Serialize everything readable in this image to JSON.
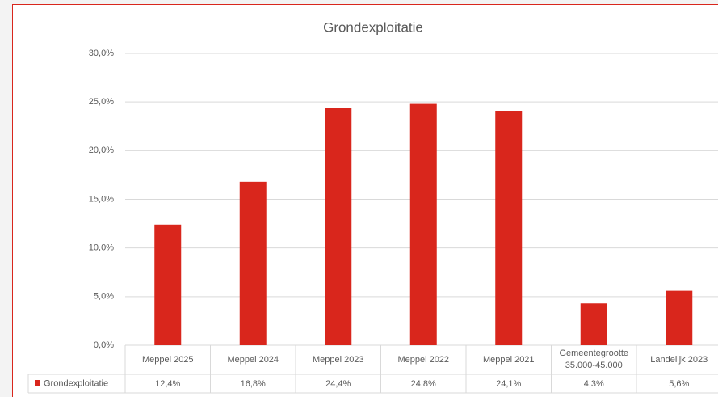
{
  "chart_data": {
    "type": "bar",
    "title": "Grondexploitatie",
    "categories": [
      "Meppel 2025",
      "Meppel 2024",
      "Meppel 2023",
      "Meppel 2022",
      "Meppel 2021",
      "Gemeentegrootte 35.000-45.000",
      "Landelijk 2023"
    ],
    "series": [
      {
        "name": "Grondexploitatie",
        "color": "#d9261c",
        "values": [
          12.4,
          16.8,
          24.4,
          24.8,
          24.1,
          4.3,
          5.6
        ],
        "value_labels": [
          "12,4%",
          "16,8%",
          "24,4%",
          "24,8%",
          "24,1%",
          "4,3%",
          "5,6%"
        ]
      }
    ],
    "ylim": [
      0,
      30
    ],
    "yticks": [
      {
        "value": 0,
        "label": "0,0%"
      },
      {
        "value": 5,
        "label": "5,0%"
      },
      {
        "value": 10,
        "label": "10,0%"
      },
      {
        "value": 15,
        "label": "15,0%"
      },
      {
        "value": 20,
        "label": "20,0%"
      },
      {
        "value": 25,
        "label": "25,0%"
      },
      {
        "value": 30,
        "label": "30,0%"
      }
    ],
    "grid": true
  }
}
